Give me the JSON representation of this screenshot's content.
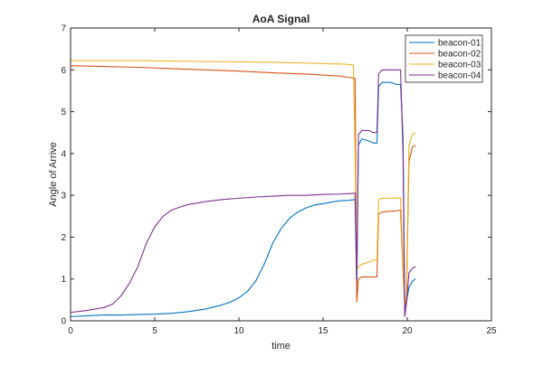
{
  "colors": {
    "beacon-01": "#0072BD",
    "beacon-02": "#D95319",
    "beacon-03": "#EDB120",
    "beacon-04": "#7E2F8E",
    "axis": "#262626"
  },
  "chart_data": {
    "type": "line",
    "title": "AoA Signal",
    "xlabel": "time",
    "ylabel": "Angle of Arrive",
    "xlim": [
      0,
      25
    ],
    "ylim": [
      0,
      7
    ],
    "xticks": [
      0,
      5,
      10,
      15,
      20,
      25
    ],
    "yticks": [
      0,
      1,
      2,
      3,
      4,
      5,
      6,
      7
    ],
    "grid": false,
    "legend_position": "top-right",
    "series": [
      {
        "name": "beacon-01",
        "color": "#0072BD",
        "x": [
          0,
          1,
          2,
          3,
          4,
          5,
          6,
          7,
          8,
          9,
          9.5,
          10,
          10.5,
          11,
          11.5,
          12,
          12.5,
          13,
          13.5,
          14,
          14.5,
          15,
          15.5,
          16,
          16.5,
          16.9,
          17.0,
          17.1,
          17.3,
          17.7,
          18.0,
          18.2,
          18.3,
          18.5,
          19.0,
          19.4,
          19.6,
          19.75,
          19.85,
          19.95,
          20.1,
          20.3,
          20.5
        ],
        "y": [
          0.1,
          0.12,
          0.14,
          0.14,
          0.15,
          0.16,
          0.18,
          0.22,
          0.28,
          0.38,
          0.45,
          0.55,
          0.7,
          0.95,
          1.35,
          1.85,
          2.2,
          2.45,
          2.6,
          2.7,
          2.77,
          2.8,
          2.84,
          2.87,
          2.88,
          2.9,
          0.7,
          4.2,
          4.35,
          4.3,
          4.25,
          4.25,
          5.6,
          5.7,
          5.7,
          5.65,
          5.65,
          4.4,
          0.3,
          0.45,
          0.8,
          0.95,
          1.0
        ]
      },
      {
        "name": "beacon-02",
        "color": "#D95319",
        "x": [
          0,
          2,
          4,
          6,
          8,
          10,
          12,
          14,
          16,
          16.5,
          16.9,
          17.0,
          17.1,
          17.3,
          17.7,
          18.0,
          18.2,
          18.3,
          18.5,
          19.0,
          19.4,
          19.6,
          19.75,
          19.85,
          19.95,
          20.1,
          20.3,
          20.5
        ],
        "y": [
          6.1,
          6.08,
          6.06,
          6.03,
          6.0,
          5.97,
          5.93,
          5.9,
          5.85,
          5.82,
          5.8,
          0.45,
          1.0,
          1.05,
          1.05,
          1.05,
          1.05,
          2.55,
          2.6,
          2.62,
          2.63,
          2.65,
          1.2,
          0.35,
          0.5,
          3.8,
          4.15,
          4.2
        ]
      },
      {
        "name": "beacon-03",
        "color": "#EDB120",
        "x": [
          0,
          2,
          4,
          6,
          8,
          10,
          12,
          14,
          16,
          16.5,
          16.7,
          16.8,
          16.9,
          17.0,
          17.1,
          17.3,
          17.7,
          18.0,
          18.2,
          18.3,
          18.5,
          19.0,
          19.4,
          19.6,
          19.75,
          19.85,
          19.95,
          20.1,
          20.3,
          20.5
        ],
        "y": [
          6.22,
          6.22,
          6.22,
          6.21,
          6.2,
          6.19,
          6.18,
          6.16,
          6.14,
          6.13,
          6.12,
          6.12,
          4.0,
          1.2,
          1.3,
          1.35,
          1.4,
          1.45,
          1.45,
          2.9,
          2.93,
          2.93,
          2.93,
          2.95,
          1.4,
          0.4,
          0.6,
          4.2,
          4.45,
          4.5
        ]
      },
      {
        "name": "beacon-04",
        "color": "#7E2F8E",
        "x": [
          0,
          1,
          2,
          2.5,
          3,
          3.5,
          4,
          4.5,
          5,
          5.5,
          6,
          6.5,
          7,
          8,
          9,
          10,
          11,
          12,
          13,
          14,
          15,
          16,
          16.5,
          16.9,
          17.0,
          17.1,
          17.3,
          17.7,
          18.0,
          18.2,
          18.3,
          18.5,
          19.0,
          19.4,
          19.6,
          19.75,
          19.85,
          19.95,
          20.1,
          20.3,
          20.5
        ],
        "y": [
          0.2,
          0.25,
          0.32,
          0.4,
          0.6,
          0.9,
          1.3,
          1.85,
          2.25,
          2.5,
          2.65,
          2.72,
          2.78,
          2.85,
          2.9,
          2.93,
          2.96,
          2.98,
          3.0,
          3.0,
          3.02,
          3.03,
          3.04,
          3.05,
          1.0,
          4.45,
          4.55,
          4.55,
          4.5,
          4.5,
          5.9,
          6.0,
          6.0,
          6.0,
          6.0,
          4.0,
          0.1,
          0.4,
          1.15,
          1.25,
          1.3
        ]
      }
    ]
  }
}
